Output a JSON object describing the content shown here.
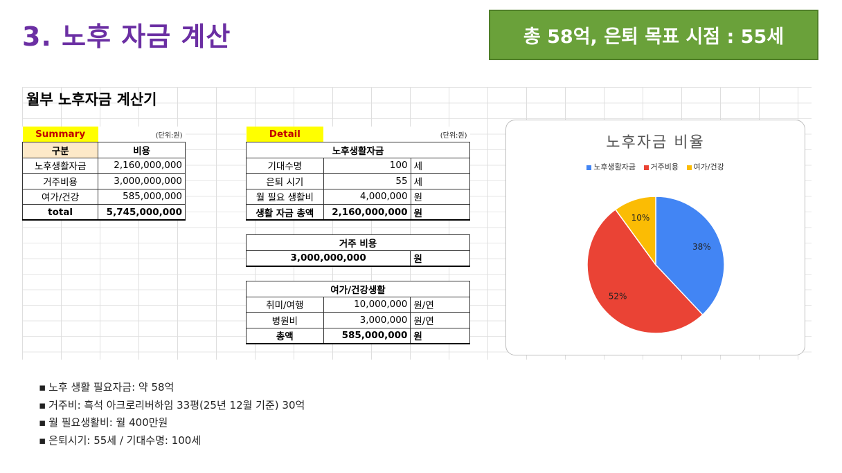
{
  "slide": {
    "title": "3. 노후 자금 계산",
    "headline": "총 58억, 은퇴 목표 시점 : 55세"
  },
  "sheet": {
    "title": "월부 노후자금 계산기"
  },
  "summary": {
    "label": "Summary",
    "unit": "(단위:원)",
    "col_category": "구분",
    "col_cost": "비용",
    "rows": [
      {
        "name": "노후생활자금",
        "value": "2,160,000,000"
      },
      {
        "name": "거주비용",
        "value": "3,000,000,000"
      },
      {
        "name": "여가/건강",
        "value": "585,000,000"
      }
    ],
    "total_label": "total",
    "total_value": "5,745,000,000"
  },
  "detail": {
    "label": "Detail",
    "unit": "(단위:원)",
    "living": {
      "header": "노후생활자금",
      "rows": [
        {
          "name": "기대수명",
          "value": "100",
          "unit": "세"
        },
        {
          "name": "은퇴 시기",
          "value": "55",
          "unit": "세"
        },
        {
          "name": "월 필요 생활비",
          "value": "4,000,000",
          "unit": "원"
        }
      ],
      "total": {
        "name": "생활 자금 총액",
        "value": "2,160,000,000",
        "unit": "원"
      }
    },
    "housing": {
      "header": "거주 비용",
      "value": "3,000,000,000",
      "unit": "원"
    },
    "leisure": {
      "header": "여가/건강생활",
      "rows": [
        {
          "name": "취미/여행",
          "value": "10,000,000",
          "unit": "원/연"
        },
        {
          "name": "병원비",
          "value": "3,000,000",
          "unit": "원/연"
        }
      ],
      "total": {
        "name": "총액",
        "value": "585,000,000",
        "unit": "원"
      }
    }
  },
  "chart_data": {
    "type": "pie",
    "title": "노후자금 비율",
    "legend_position": "top",
    "categories": [
      "노후생활자금",
      "거주비용",
      "여가/건강"
    ],
    "values": [
      38,
      52,
      10
    ],
    "labels": [
      "38%",
      "52%",
      "10%"
    ],
    "colors": [
      "#4285f4",
      "#ea4335",
      "#fbbc04"
    ]
  },
  "notes": [
    "노후 생활 필요자금: 약 58억",
    "거주비: 흑석 아크로리버하임 33평(25년 12월 기준) 30억",
    "월 필요생활비: 월 400만원",
    "은퇴시기: 55세 / 기대수명: 100세"
  ]
}
